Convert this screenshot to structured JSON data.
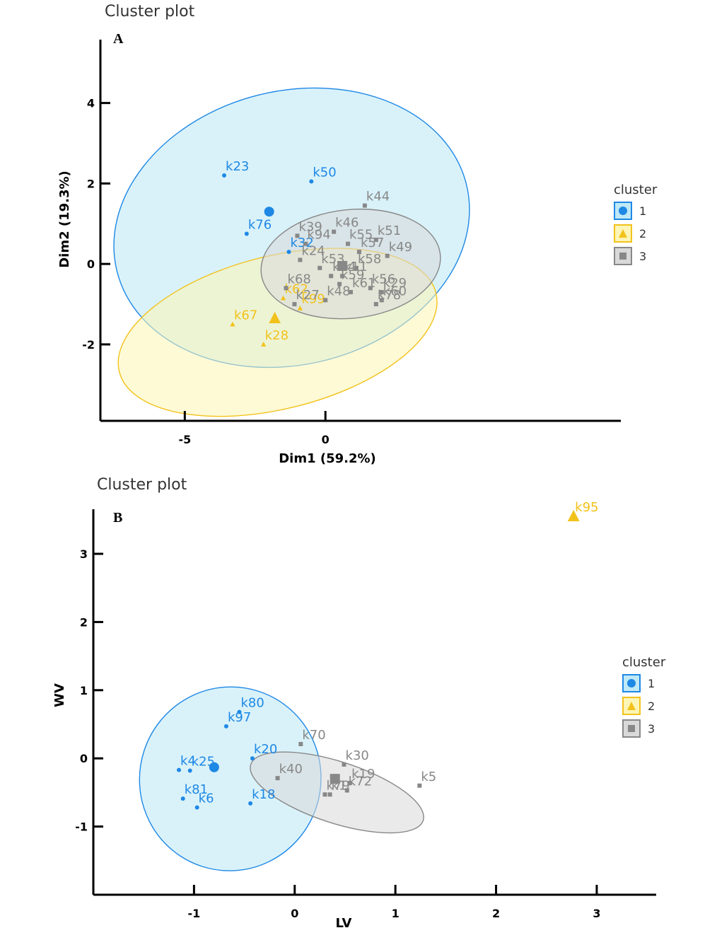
{
  "colors": {
    "c1": "#1e88e5",
    "c2": "#f2c21b",
    "c3": "#888888",
    "fill1": "#bfe9f7",
    "fill2": "#fdf5b5",
    "fill3": "#d9d9d9"
  },
  "chart_data": [
    {
      "type": "scatter",
      "title": "Cluster plot",
      "panel_label": "A",
      "xlabel": "Dim1 (59.2%)",
      "ylabel": "Dim2 (19.3%)",
      "xlim": [
        -8,
        10
      ],
      "ylim": [
        -3.9,
        5.4
      ],
      "xticks": [
        {
          "v": -5,
          "label": "-5"
        },
        {
          "v": 0,
          "label": "0"
        }
      ],
      "yticks": [
        {
          "v": -2,
          "label": "-2"
        },
        {
          "v": 0,
          "label": "0"
        },
        {
          "v": 2,
          "label": "2"
        },
        {
          "v": 4,
          "label": "4"
        }
      ],
      "legend_title": "cluster",
      "legend": [
        "1",
        "2",
        "3"
      ],
      "ellipses": [
        {
          "cluster": 1,
          "cx": -1.2,
          "cy": 0.9,
          "rx": 6.4,
          "ry": 3.4,
          "angle": -14
        },
        {
          "cluster": 2,
          "cx": -1.7,
          "cy": -1.7,
          "rx": 5.8,
          "ry": 1.9,
          "angle": -14
        },
        {
          "cluster": 3,
          "cx": 0.9,
          "cy": 0.0,
          "rx": 3.2,
          "ry": 1.35,
          "angle": -6
        }
      ],
      "centers": [
        {
          "cluster": 1,
          "x": -2.0,
          "y": 1.3
        },
        {
          "cluster": 2,
          "x": -1.8,
          "y": -1.35
        },
        {
          "cluster": 3,
          "x": 0.6,
          "y": -0.05
        }
      ],
      "points": [
        {
          "label": "k23",
          "x": -3.6,
          "y": 2.2,
          "cluster": 1
        },
        {
          "label": "k50",
          "x": -0.5,
          "y": 2.05,
          "cluster": 1
        },
        {
          "label": "k76",
          "x": -2.8,
          "y": 0.75,
          "cluster": 1
        },
        {
          "label": "k32",
          "x": -1.3,
          "y": 0.3,
          "cluster": 1
        },
        {
          "label": "k67",
          "x": -3.3,
          "y": -1.5,
          "cluster": 2
        },
        {
          "label": "k28",
          "x": -2.2,
          "y": -2.0,
          "cluster": 2
        },
        {
          "label": "k62",
          "x": -1.5,
          "y": -0.85,
          "cluster": 2
        },
        {
          "label": "k99",
          "x": -0.9,
          "y": -1.1,
          "cluster": 2
        },
        {
          "label": "k39",
          "x": -1.0,
          "y": 0.7,
          "cluster": 3
        },
        {
          "label": "k94",
          "x": -0.7,
          "y": 0.5,
          "cluster": 3
        },
        {
          "label": "k46",
          "x": 0.3,
          "y": 0.8,
          "cluster": 3
        },
        {
          "label": "k44",
          "x": 1.4,
          "y": 1.45,
          "cluster": 3
        },
        {
          "label": "k51",
          "x": 1.8,
          "y": 0.6,
          "cluster": 3
        },
        {
          "label": "k55",
          "x": 0.8,
          "y": 0.5,
          "cluster": 3
        },
        {
          "label": "k57",
          "x": 1.2,
          "y": 0.3,
          "cluster": 3
        },
        {
          "label": "k49",
          "x": 2.2,
          "y": 0.2,
          "cluster": 3
        },
        {
          "label": "k24",
          "x": -0.9,
          "y": 0.1,
          "cluster": 3
        },
        {
          "label": "k53",
          "x": -0.2,
          "y": -0.1,
          "cluster": 3
        },
        {
          "label": "k58",
          "x": 1.1,
          "y": -0.1,
          "cluster": 3
        },
        {
          "label": "k68",
          "x": -1.4,
          "y": -0.6,
          "cluster": 3
        },
        {
          "label": "k34",
          "x": 0.2,
          "y": -0.3,
          "cluster": 3
        },
        {
          "label": "k11",
          "x": 0.6,
          "y": -0.3,
          "cluster": 3
        },
        {
          "label": "k29",
          "x": 2.0,
          "y": -0.7,
          "cluster": 3
        },
        {
          "label": "k27",
          "x": -1.1,
          "y": -1.0,
          "cluster": 3
        },
        {
          "label": "k48",
          "x": 0.0,
          "y": -0.9,
          "cluster": 3
        },
        {
          "label": "k56",
          "x": 1.6,
          "y": -0.6,
          "cluster": 3
        },
        {
          "label": "k60",
          "x": 2.0,
          "y": -0.9,
          "cluster": 3
        },
        {
          "label": "k59",
          "x": 0.5,
          "y": -0.5,
          "cluster": 3
        },
        {
          "label": "k61",
          "x": 0.9,
          "y": -0.7,
          "cluster": 3
        },
        {
          "label": "k78",
          "x": 1.8,
          "y": -1.0,
          "cluster": 3
        }
      ]
    },
    {
      "type": "scatter",
      "title": "Cluster plot",
      "panel_label": "B",
      "xlabel": "LV",
      "ylabel": "WV",
      "xlim": [
        -2.0,
        3.45
      ],
      "ylim": [
        -2.0,
        3.55
      ],
      "xticks": [
        {
          "v": -1,
          "label": "-1"
        },
        {
          "v": 0,
          "label": "0"
        },
        {
          "v": 1,
          "label": "1"
        },
        {
          "v": 2,
          "label": "2"
        },
        {
          "v": 3,
          "label": "3"
        }
      ],
      "yticks": [
        {
          "v": -1,
          "label": "-1"
        },
        {
          "v": 0,
          "label": "0"
        },
        {
          "v": 1,
          "label": "1"
        },
        {
          "v": 2,
          "label": "2"
        },
        {
          "v": 3,
          "label": "3"
        }
      ],
      "legend_title": "cluster",
      "legend": [
        "1",
        "2",
        "3"
      ],
      "ellipses": [
        {
          "cluster": 1,
          "cx": -0.64,
          "cy": -0.3,
          "rx": 0.9,
          "ry": 1.35,
          "angle": 18
        },
        {
          "cluster": 3,
          "cx": 0.42,
          "cy": -0.5,
          "rx": 0.9,
          "ry": 0.45,
          "angle": 18
        }
      ],
      "centers": [
        {
          "cluster": 1,
          "x": -0.8,
          "y": -0.13
        },
        {
          "cluster": 2,
          "x": 2.77,
          "y": 3.55
        },
        {
          "cluster": 3,
          "x": 0.4,
          "y": -0.3
        }
      ],
      "points": [
        {
          "label": "k80",
          "x": -0.55,
          "y": 0.68,
          "cluster": 1
        },
        {
          "label": "k97",
          "x": -0.68,
          "y": 0.47,
          "cluster": 1
        },
        {
          "label": "k20",
          "x": -0.42,
          "y": 0.0,
          "cluster": 1
        },
        {
          "label": "k4",
          "x": -1.15,
          "y": -0.17,
          "cluster": 1
        },
        {
          "label": "k25",
          "x": -1.04,
          "y": -0.18,
          "cluster": 1
        },
        {
          "label": "k81",
          "x": -1.11,
          "y": -0.59,
          "cluster": 1
        },
        {
          "label": "k6",
          "x": -0.97,
          "y": -0.72,
          "cluster": 1
        },
        {
          "label": "k18",
          "x": -0.44,
          "y": -0.66,
          "cluster": 1
        },
        {
          "label": "k95",
          "x": 2.77,
          "y": 3.55,
          "cluster": 2
        },
        {
          "label": "k70",
          "x": 0.06,
          "y": 0.21,
          "cluster": 3
        },
        {
          "label": "k30",
          "x": 0.49,
          "y": -0.09,
          "cluster": 3
        },
        {
          "label": "k19",
          "x": 0.55,
          "y": -0.36,
          "cluster": 3
        },
        {
          "label": "k40",
          "x": -0.17,
          "y": -0.29,
          "cluster": 3
        },
        {
          "label": "k79",
          "x": 0.3,
          "y": -0.53,
          "cluster": 3
        },
        {
          "label": "k1",
          "x": 0.35,
          "y": -0.53,
          "cluster": 3
        },
        {
          "label": "k72",
          "x": 0.52,
          "y": -0.47,
          "cluster": 3
        },
        {
          "label": "k5",
          "x": 1.24,
          "y": -0.4,
          "cluster": 3
        }
      ]
    }
  ]
}
